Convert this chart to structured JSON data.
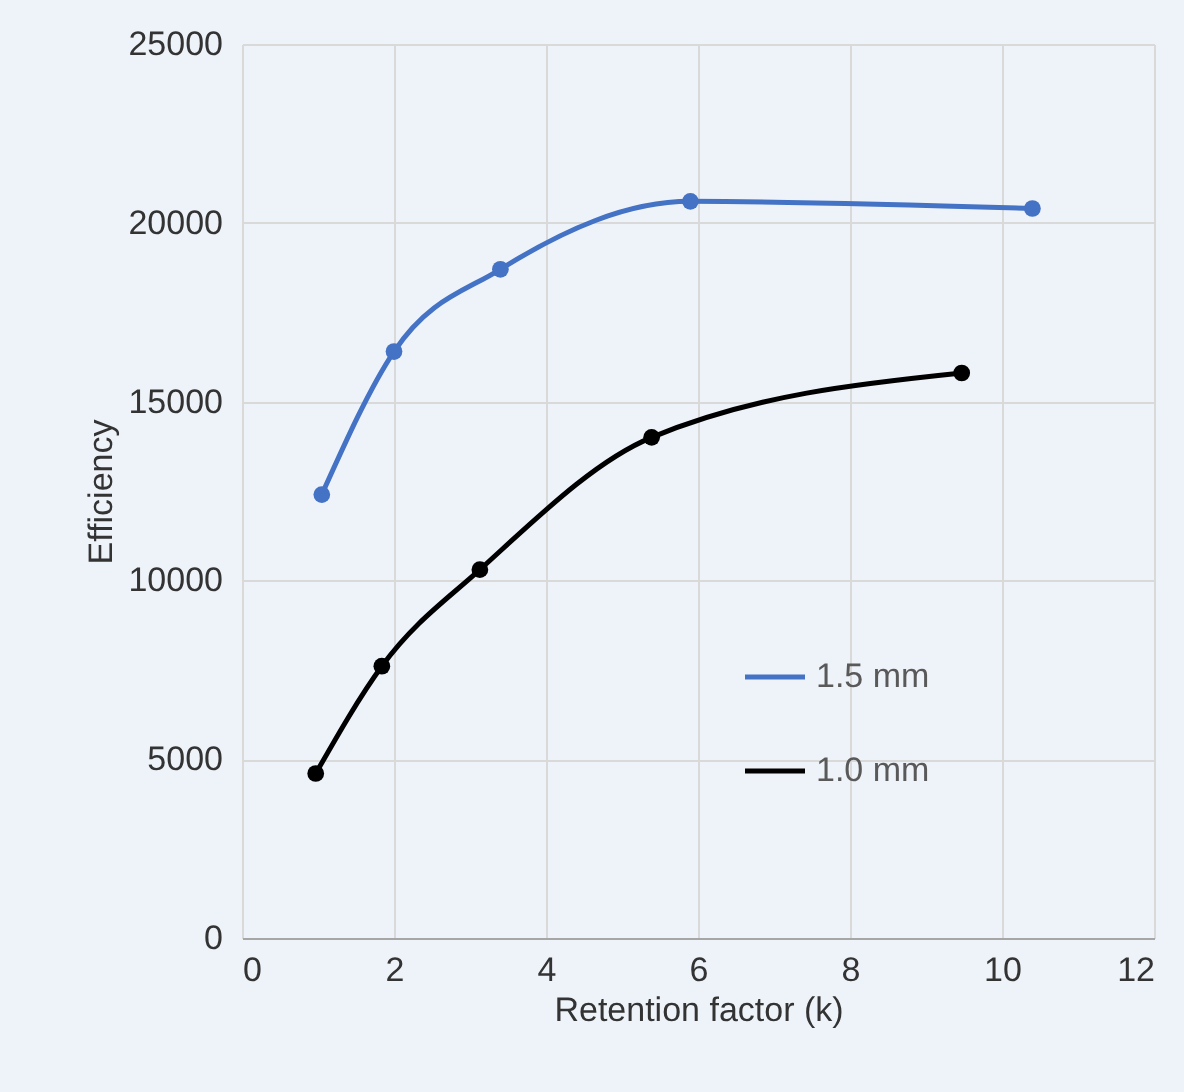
{
  "chart_data": {
    "type": "line",
    "xlabel": "Retention factor (k)",
    "ylabel": "Efficiency",
    "xlim": [
      0,
      12
    ],
    "xticks": [
      0,
      2,
      4,
      6,
      8,
      10,
      12
    ],
    "ylim": [
      0,
      25000
    ],
    "yticks": [
      0,
      5000,
      10000,
      15000,
      20000,
      25000
    ],
    "grid": true,
    "legend": "right",
    "marker": "circle",
    "line_style": "solid",
    "series": [
      {
        "name": "1.5 mm",
        "color": "#4472c4",
        "x": [
          1.05,
          2.0,
          3.4,
          5.9,
          10.4
        ],
        "values": [
          12400,
          16400,
          18700,
          20600,
          20400
        ]
      },
      {
        "name": "1.0 mm",
        "color": "#000000",
        "x": [
          0.97,
          1.84,
          3.13,
          5.39,
          9.47
        ],
        "values": [
          4600,
          7600,
          10300,
          14000,
          15800
        ]
      }
    ]
  }
}
